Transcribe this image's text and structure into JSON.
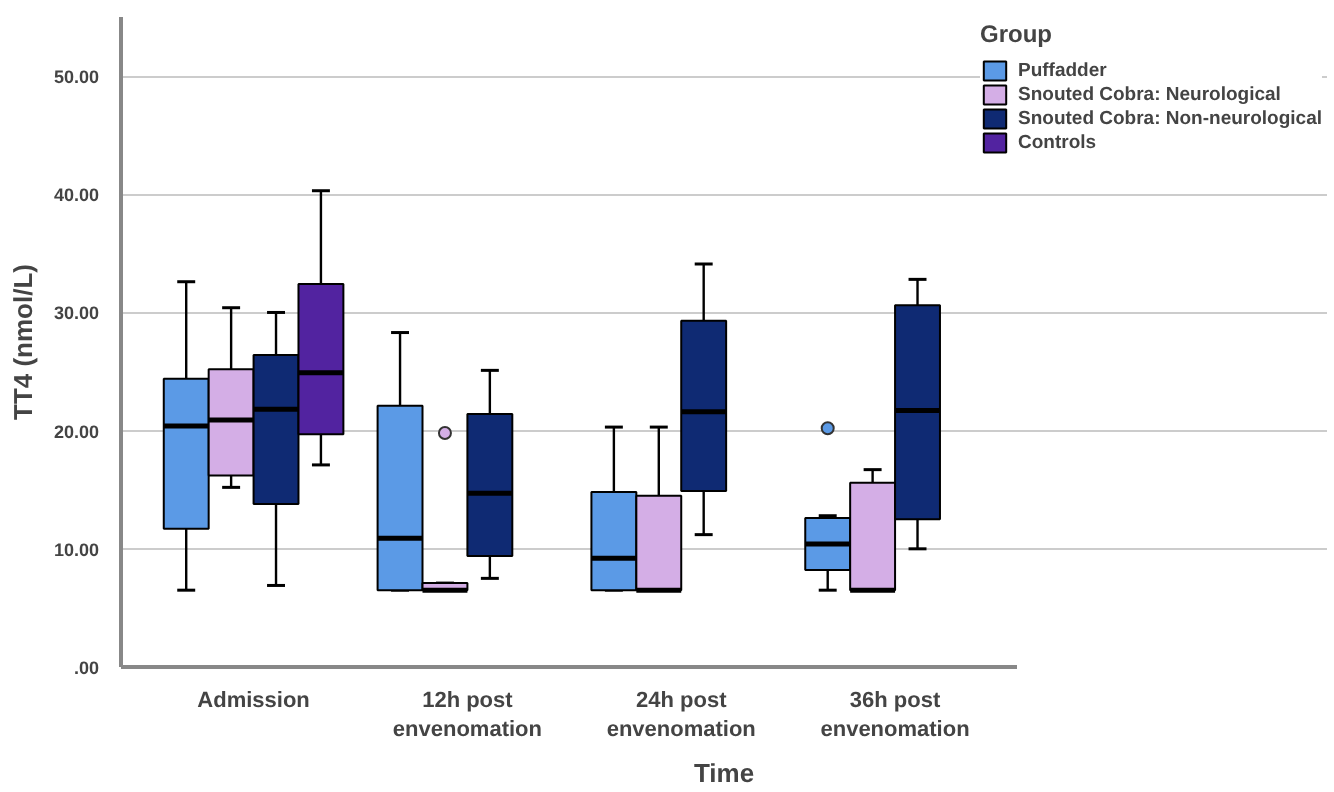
{
  "chart_data": {
    "type": "box",
    "xlabel": "Time",
    "ylabel": "TT4 (nmol/L)",
    "legend_title": "Group",
    "legend": "top right",
    "categories": [
      "Admission",
      "12h post envenomation",
      "24h post envenomation",
      "36h post envenomation"
    ],
    "ylim": [
      0,
      55
    ],
    "yticks": [
      {
        "value": 0,
        "label": ".00"
      },
      {
        "value": 10,
        "label": "10.00"
      },
      {
        "value": 20,
        "label": "20.00"
      },
      {
        "value": 30,
        "label": "30.00"
      },
      {
        "value": 40,
        "label": "40.00"
      },
      {
        "value": 50,
        "label": "50.00"
      }
    ],
    "grid": "y",
    "series": [
      {
        "name": "Puffadder",
        "color": "#5b9ae6",
        "boxes": [
          {
            "low": 6.5,
            "q1": 11.7,
            "median": 20.4,
            "q3": 24.4,
            "high": 32.6
          },
          {
            "low": 6.5,
            "q1": 6.5,
            "median": 10.9,
            "q3": 22.1,
            "high": 28.3
          },
          {
            "low": 6.5,
            "q1": 6.5,
            "median": 9.2,
            "q3": 14.8,
            "high": 20.3
          },
          {
            "low": 6.5,
            "q1": 8.2,
            "median": 10.4,
            "q3": 12.6,
            "high": 12.8,
            "outliers": [
              20.2
            ]
          }
        ]
      },
      {
        "name": "Snouted Cobra: Neurological",
        "color": "#d4aee6",
        "boxes": [
          {
            "low": 15.2,
            "q1": 16.2,
            "median": 20.9,
            "q3": 25.2,
            "high": 30.4
          },
          {
            "low": 6.5,
            "q1": 6.5,
            "median": 6.5,
            "q3": 7.1,
            "high": 7.1,
            "outliers": [
              19.8
            ]
          },
          {
            "low": 6.5,
            "q1": 6.5,
            "median": 6.5,
            "q3": 14.5,
            "high": 20.3
          },
          {
            "low": 6.5,
            "q1": 6.5,
            "median": 6.5,
            "q3": 15.6,
            "high": 16.7
          }
        ]
      },
      {
        "name": "Snouted Cobra: Non-neurological",
        "color": "#0f2a73",
        "boxes": [
          {
            "low": 6.9,
            "q1": 13.8,
            "median": 21.8,
            "q3": 26.4,
            "high": 30.0
          },
          {
            "low": 7.5,
            "q1": 9.4,
            "median": 14.7,
            "q3": 21.4,
            "high": 25.1
          },
          {
            "low": 11.2,
            "q1": 14.9,
            "median": 21.6,
            "q3": 29.3,
            "high": 34.1
          },
          {
            "low": 10.0,
            "q1": 12.5,
            "median": 21.7,
            "q3": 30.6,
            "high": 32.8
          }
        ]
      },
      {
        "name": "Controls",
        "color": "#5223a0",
        "boxes": [
          {
            "low": 17.1,
            "q1": 19.7,
            "median": 24.9,
            "q3": 32.4,
            "high": 40.3
          },
          null,
          null,
          null
        ]
      }
    ]
  }
}
